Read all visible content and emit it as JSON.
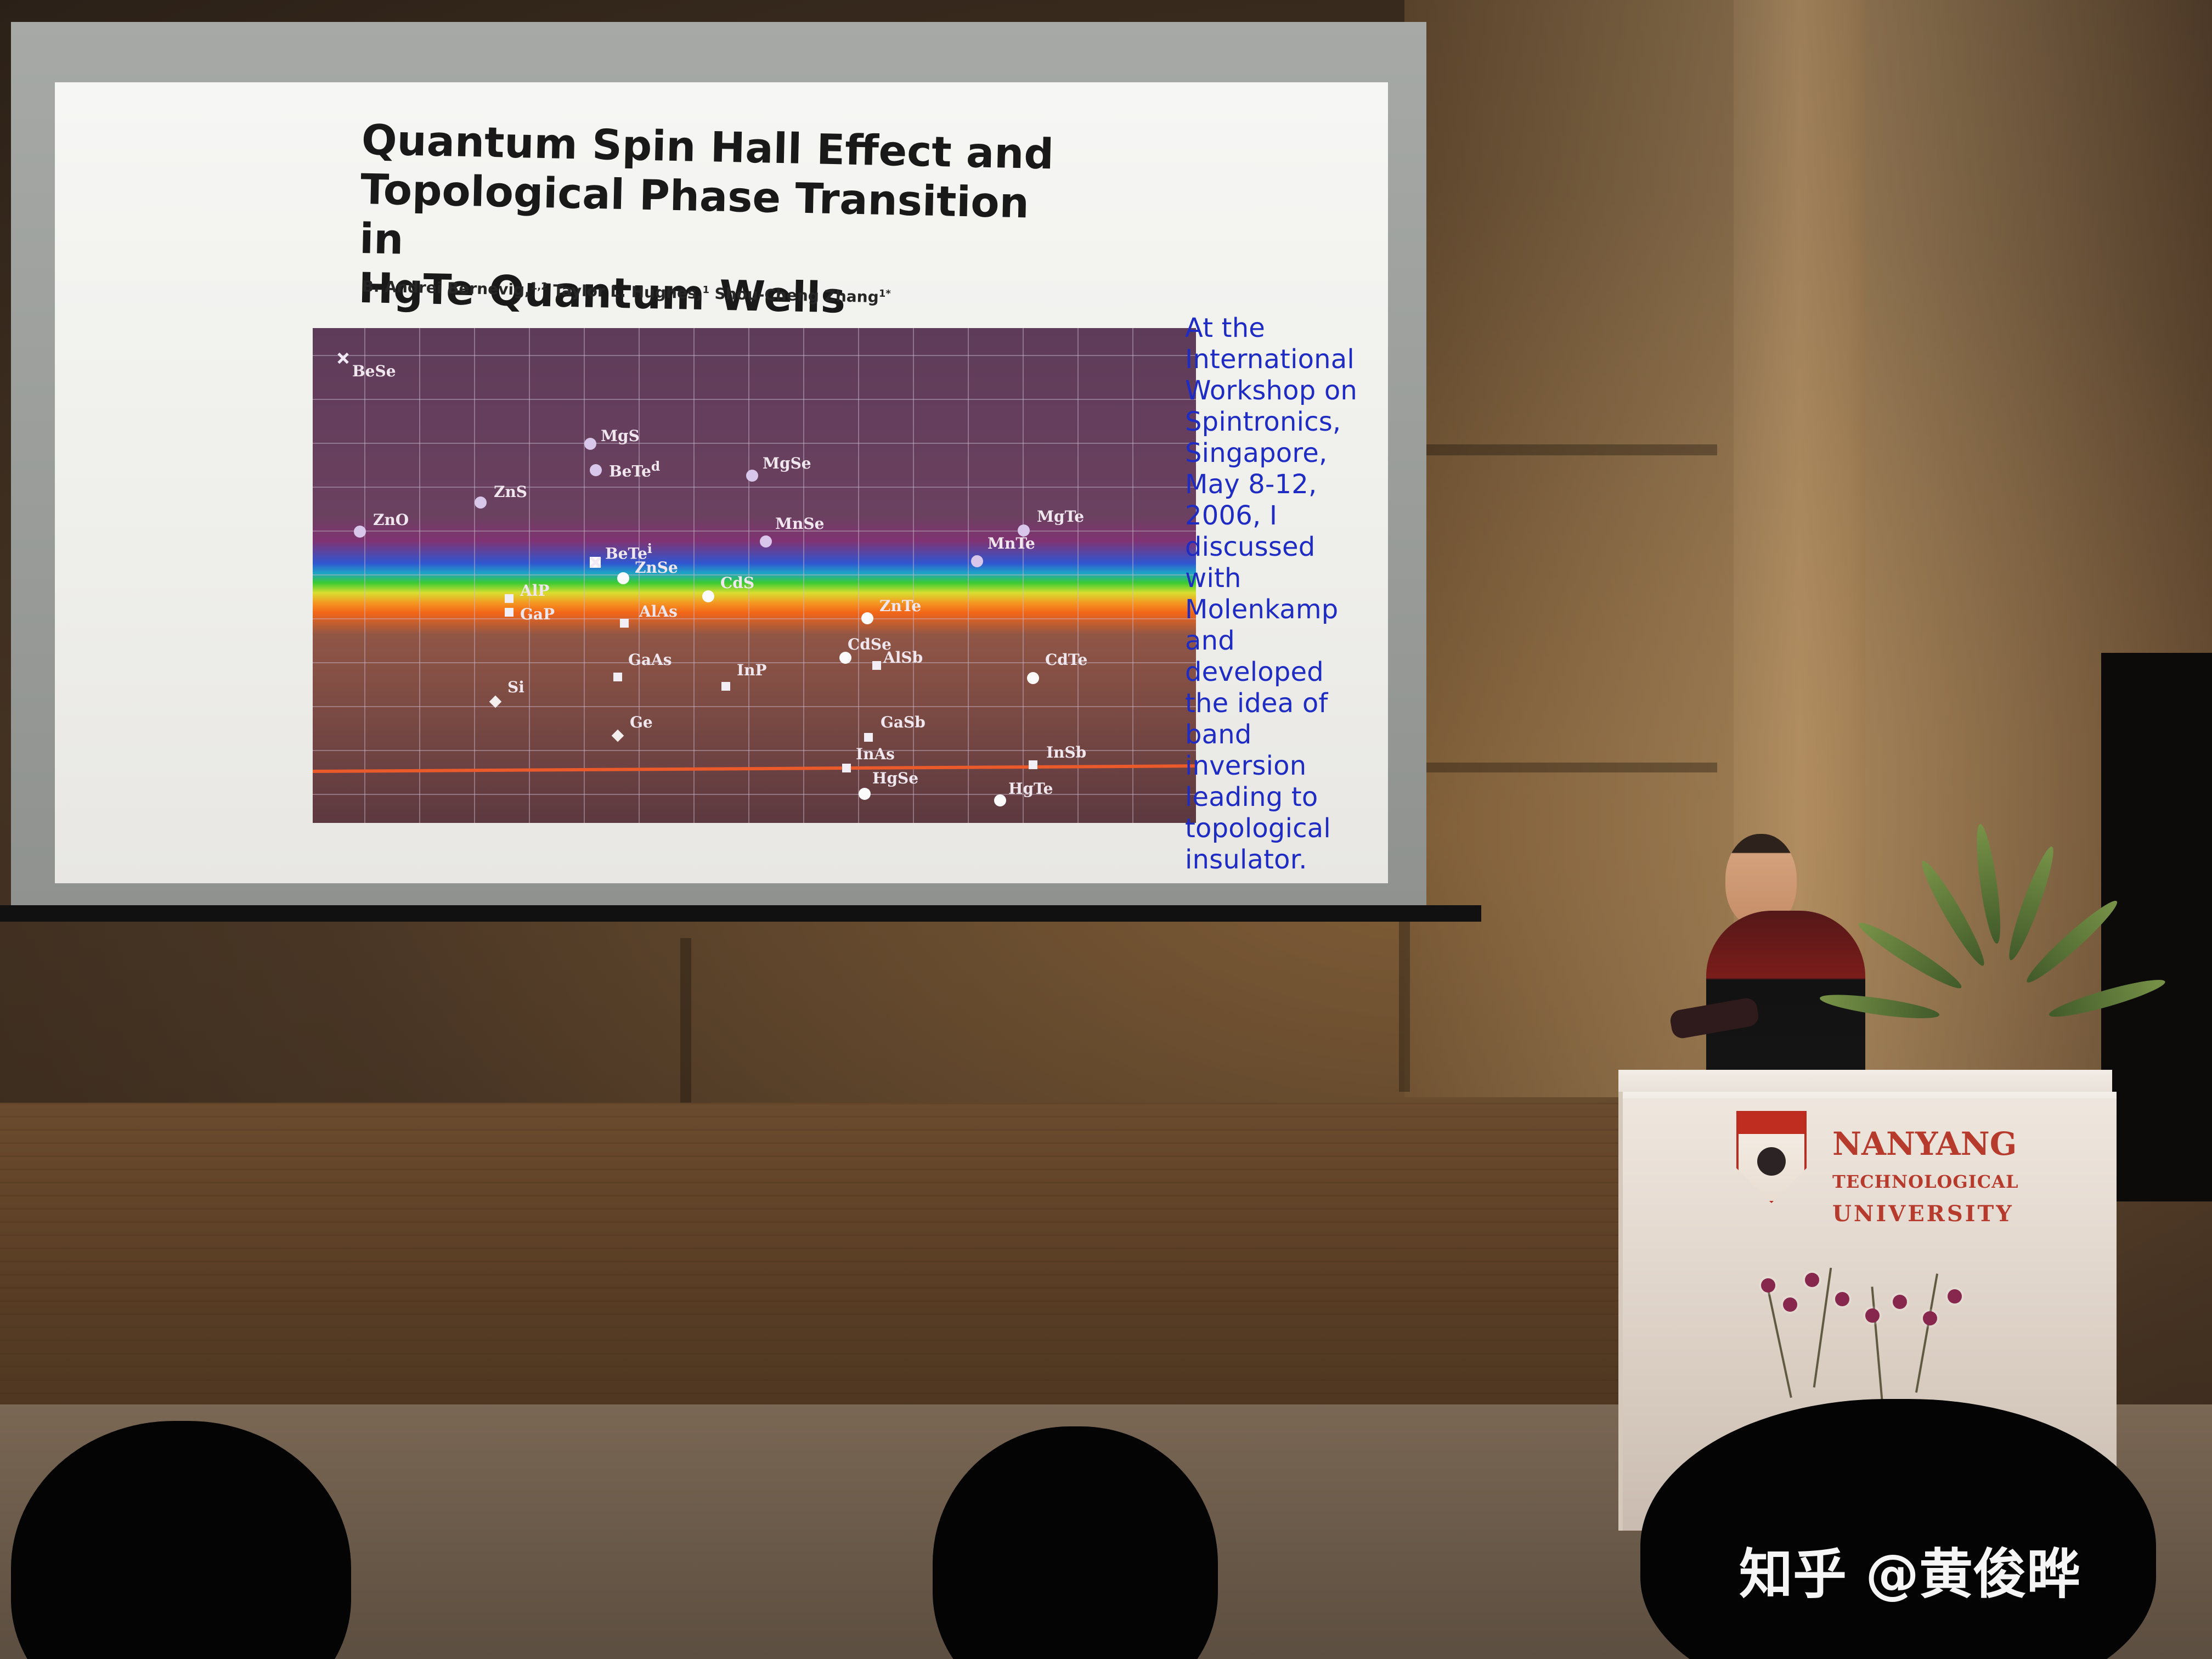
{
  "slide": {
    "title": "Quantum Spin Hall Effect and\nTopological Phase Transition in\nHgTe Quantum Wells",
    "authors": {
      "author1": "B. Andrei Bernevig,",
      "author1_sup": "1,2",
      "author2": "Taylor L. Hughes,",
      "author2_sup": "1",
      "author3": "Shou-Cheng Zhang",
      "author3_sup": "1*"
    },
    "figure": {
      "labels": {
        "BeSe": "BeSe",
        "MgS": "MgS",
        "BeTed": "BeTe",
        "BeTed_sup": "d",
        "MgSe": "MgSe",
        "ZnS": "ZnS",
        "ZnO": "ZnO",
        "MnSe": "MnSe",
        "MgTe": "MgTe",
        "MnTe": "MnTe",
        "BeTei": "BeTe",
        "BeTei_sup": "i",
        "ZnSe": "ZnSe",
        "CdS": "CdS",
        "AlP": "AlP",
        "GaP": "GaP",
        "AlAs": "AlAs",
        "ZnTe": "ZnTe",
        "CdSe": "CdSe",
        "AlSb": "AlSb",
        "GaAs": "GaAs",
        "InP": "InP",
        "CdTe": "CdTe",
        "Si": "Si",
        "Ge": "Ge",
        "GaSb": "GaSb",
        "InAs": "InAs",
        "InSb": "InSb",
        "HgSe": "HgSe",
        "HgTe": "HgTe"
      }
    },
    "side_note": "At the\nInternational\nWorkshop on\nSpintronics,\nSingapore,\nMay 8-12,\n2006, I\ndiscussed\nwith\nMolenkamp\nand\ndeveloped\nthe idea of\nband\ninversion\nleading to\ntopological\ninsulator."
  },
  "podium": {
    "line1": "NANYANG",
    "line2": "TECHNOLOGICAL",
    "line3": "UNIVERSITY"
  },
  "watermark": "知乎 @黄俊晔",
  "colors": {
    "slide_title": "#191919",
    "side_note": "#1f2cc4",
    "podium_brand": "#b73b2d",
    "watermark": "#ffffff"
  }
}
